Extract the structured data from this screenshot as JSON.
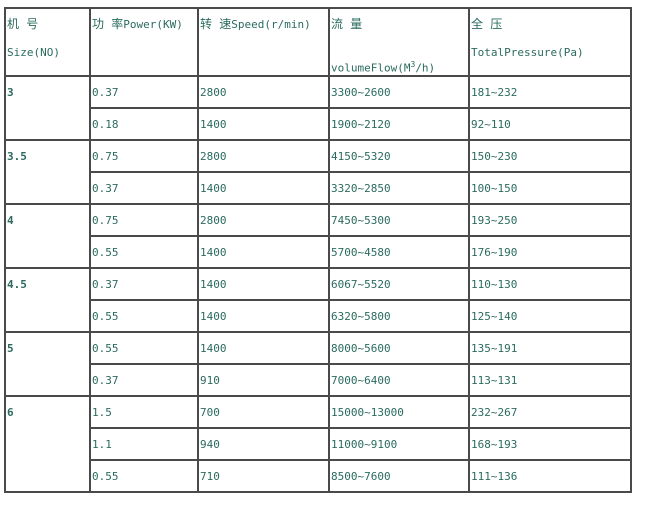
{
  "header": {
    "size": {
      "cn": "机  号",
      "en": "Size(NO)"
    },
    "power": {
      "cn": "功  率",
      "en": "Power(KW)"
    },
    "speed": {
      "cn": "转  速",
      "en": "Speed(r/min)"
    },
    "flow": {
      "cn": "流  量",
      "en": "volumeFlow(M",
      "sup": "3",
      "en_suffix": "/h)"
    },
    "pressure": {
      "cn": "全  压",
      "en": "TotalPressure(Pa)"
    }
  },
  "groups": [
    {
      "size": "3",
      "rows": [
        {
          "power": "0.37",
          "speed": "2800",
          "flow": "3300~2600",
          "pressure": "181~232"
        },
        {
          "power": "0.18",
          "speed": "1400",
          "flow": "1900~2120",
          "pressure": "92~110"
        }
      ]
    },
    {
      "size": "3.5",
      "rows": [
        {
          "power": "0.75",
          "speed": "2800",
          "flow": "4150~5320",
          "pressure": "150~230"
        },
        {
          "power": "0.37",
          "speed": "1400",
          "flow": "3320~2850",
          "pressure": "100~150"
        }
      ]
    },
    {
      "size": "4",
      "rows": [
        {
          "power": "0.75",
          "speed": "2800",
          "flow": "7450~5300",
          "pressure": "193~250"
        },
        {
          "power": "0.55",
          "speed": "1400",
          "flow": "5700~4580",
          "pressure": "176~190"
        }
      ]
    },
    {
      "size": "4.5",
      "rows": [
        {
          "power": "0.37",
          "speed": "1400",
          "flow": "6067~5520",
          "pressure": "110~130"
        },
        {
          "power": "0.55",
          "speed": "1400",
          "flow": "6320~5800",
          "pressure": "125~140"
        }
      ]
    },
    {
      "size": "5",
      "rows": [
        {
          "power": "0.55",
          "speed": "1400",
          "flow": "8000~5600",
          "pressure": "135~191"
        },
        {
          "power": "0.37",
          "speed": "910",
          "flow": "7000~6400",
          "pressure": "113~131"
        }
      ]
    },
    {
      "size": "6",
      "rows": [
        {
          "power": "1.5",
          "speed": "700",
          "flow": "15000~13000",
          "pressure": "232~267"
        },
        {
          "power": "1.1",
          "speed": "940",
          "flow": "11000~9100",
          "pressure": "168~193"
        },
        {
          "power": "0.55",
          "speed": "710",
          "flow": "8500~7600",
          "pressure": "111~136"
        }
      ]
    }
  ],
  "colors": {
    "text": "#2a6b5e",
    "border": "#4a4a4a"
  }
}
